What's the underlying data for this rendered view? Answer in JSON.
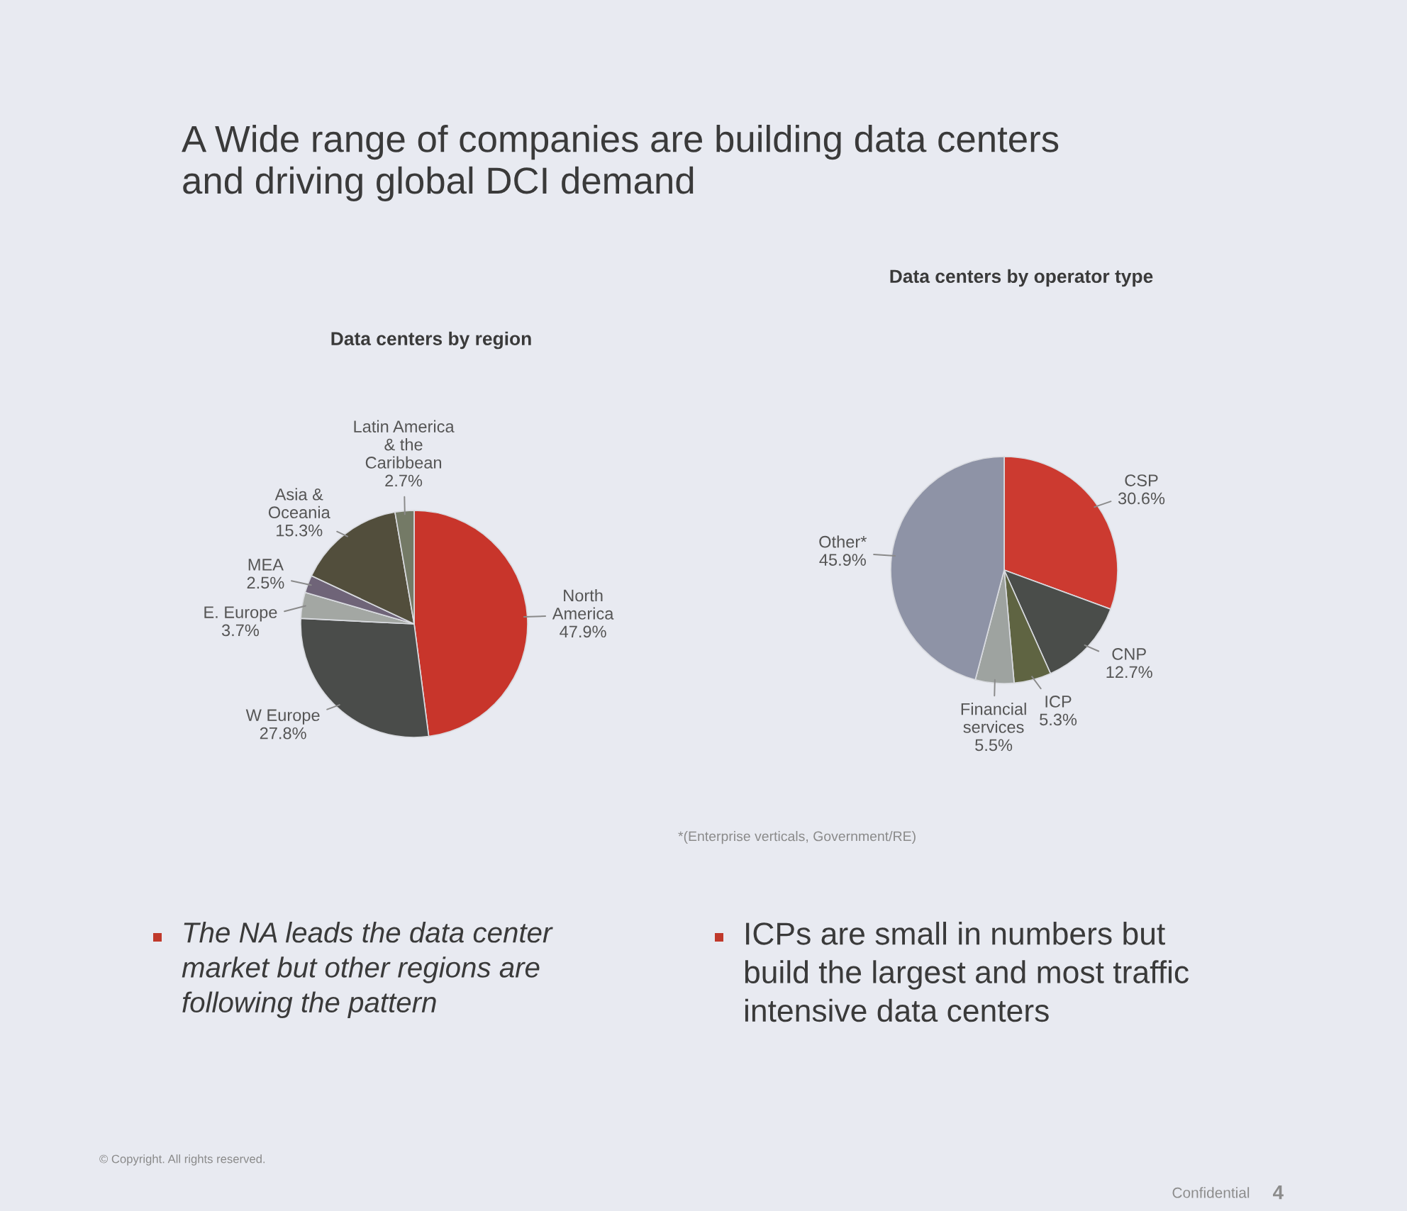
{
  "chart_data": [
    {
      "type": "other",
      "title": "A Wide range of companies are building data centers\nand driving global DCI demand",
      "annotations": [
        "© Copyright. All rights reserved.",
        "Confidential",
        "4"
      ]
    },
    {
      "type": "pie",
      "title": "Data centers by region",
      "categories": [
        "North\nAmerica",
        "W Europe",
        "E. Europe",
        "MEA",
        "Asia &\nOceania",
        "Latin America\n& the\nCaribbean"
      ],
      "values": [
        47.9,
        27.8,
        3.7,
        2.5,
        15.3,
        2.7
      ],
      "colors": [
        "#c8352b",
        "#4a4c4a",
        "#a3a7a3",
        "#6f6478",
        "#524e3c",
        "#747a66"
      ],
      "value_labels": [
        "47.9%",
        "27.8%",
        "3.7%",
        "2.5%",
        "15.3%",
        "2.7%"
      ],
      "annotations": [
        "The NA leads the data center\nmarket but other regions are\nfollowing the pattern"
      ]
    },
    {
      "type": "pie",
      "title": "Data centers by operator type",
      "categories": [
        "CSP",
        "CNP",
        "ICP",
        "Financial\nservices",
        "Other*"
      ],
      "values": [
        30.6,
        12.7,
        5.3,
        5.5,
        45.9
      ],
      "colors": [
        "#cc3a30",
        "#4a4d4a",
        "#5f6442",
        "#9ea3a0",
        "#8e93a6"
      ],
      "value_labels": [
        "30.6%",
        "12.7%",
        "5.3%",
        "5.5%",
        "45.9%"
      ],
      "annotations": [
        "*(Enterprise verticals, Government/RE)",
        "ICPs are small in numbers but\nbuild the largest and most traffic\nintensive data centers"
      ]
    }
  ]
}
